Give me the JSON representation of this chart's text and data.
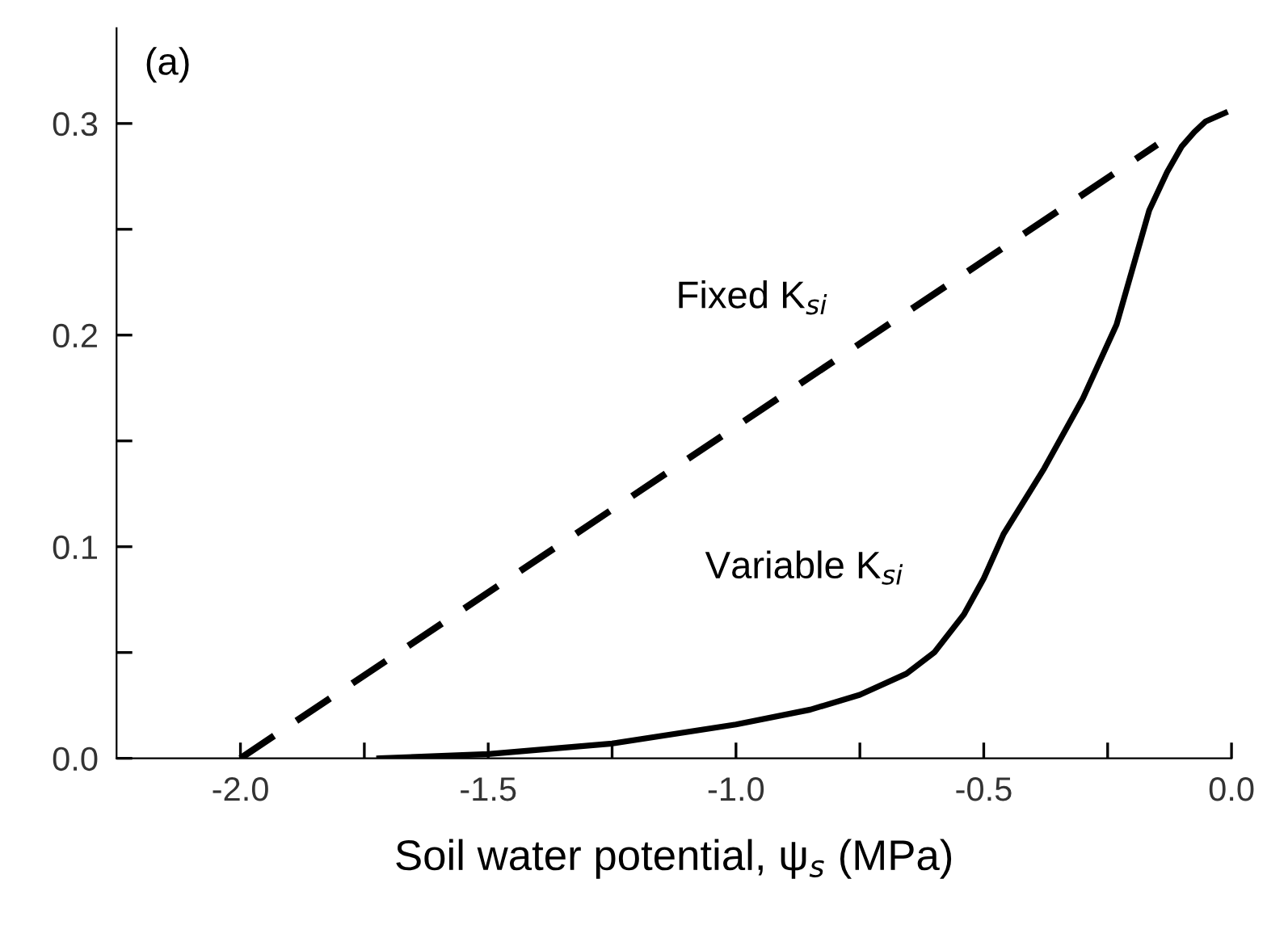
{
  "chart_data": {
    "type": "line",
    "xlabel": "Soil water potential, ψ$_{s}$ (MPa)",
    "annotations": [
      "(a)",
      "Fixed K$_{si}$",
      "Variable K$_{si}$"
    ],
    "series": [
      {
        "color": "#000000",
        "line_style": "dashed",
        "x": [
          -2.0,
          -0.15
        ],
        "values": [
          0.0,
          0.29
        ]
      },
      {
        "color": "#000000",
        "line_style": "solid",
        "x": [
          -1.72,
          -1.5,
          -1.25,
          -1.0,
          -0.85,
          -0.75,
          -0.656,
          -0.6,
          -0.54,
          -0.5,
          -0.46,
          -0.378,
          -0.3,
          -0.232,
          -0.166,
          -0.13,
          -0.101,
          -0.075,
          -0.052,
          -0.013
        ],
        "values": [
          0.0,
          0.002,
          0.007,
          0.016,
          0.023,
          0.03,
          0.04,
          0.05,
          0.068,
          0.085,
          0.106,
          0.137,
          0.17,
          0.205,
          0.259,
          0.277,
          0.289,
          0.296,
          0.301,
          0.305
        ]
      }
    ],
    "xlim": [
      -2.25,
      0.0
    ],
    "ylim": [
      0.0,
      0.345
    ],
    "xticks": [
      {
        "value": -2.0,
        "label": "-2.0"
      },
      {
        "value": -1.75,
        "label": null
      },
      {
        "value": -1.5,
        "label": "-1.5"
      },
      {
        "value": -1.25,
        "label": null
      },
      {
        "value": -1.0,
        "label": "-1.0"
      },
      {
        "value": -0.75,
        "label": null
      },
      {
        "value": -0.5,
        "label": "-0.5"
      },
      {
        "value": -0.25,
        "label": null
      },
      {
        "value": 0.0,
        "label": "0.0"
      }
    ],
    "yticks": [
      {
        "value": 0.0,
        "label": "0.0"
      },
      {
        "value": 0.05,
        "label": null
      },
      {
        "value": 0.1,
        "label": "0.1"
      },
      {
        "value": 0.15,
        "label": null
      },
      {
        "value": 0.2,
        "label": "0.2"
      },
      {
        "value": 0.25,
        "label": null
      },
      {
        "value": 0.3,
        "label": "0.3"
      }
    ],
    "grid": false,
    "legend": false
  }
}
